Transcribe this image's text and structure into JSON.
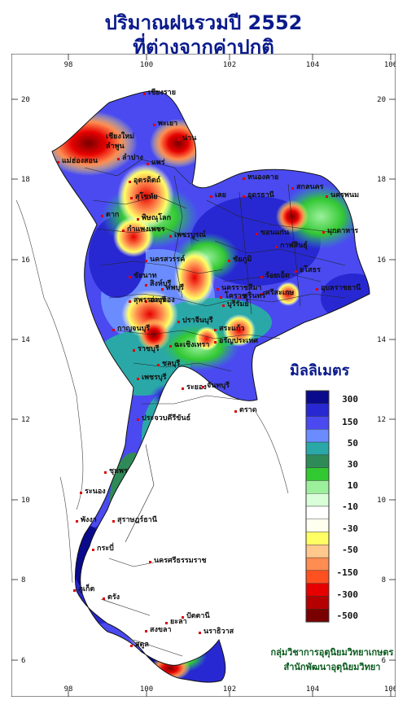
{
  "title": {
    "line1": "ปริมาณฝนรวมปี  2552",
    "line2": "ที่ต่างจากค่าปกติ"
  },
  "axes": {
    "lon_ticks": [
      "98",
      "100",
      "102",
      "104",
      "106"
    ],
    "lat_ticks": [
      "20",
      "18",
      "16",
      "14",
      "12",
      "10",
      "8",
      "6"
    ]
  },
  "legend": {
    "unit_label": "มิลลิเมตร",
    "class_labels": [
      "300",
      "150",
      "50",
      "30",
      "10",
      "-10",
      "-30",
      "-50",
      "-150",
      "-300",
      "-500"
    ],
    "colors": [
      "#0a0a8c",
      "#2828d2",
      "#4a4af0",
      "#6a8cff",
      "#2aa8a8",
      "#2e8b57",
      "#32c832",
      "#9cf09c",
      "#d8ffd8",
      "#ffffff",
      "#fffff0",
      "#ffff64",
      "#ffc88c",
      "#ff8c50",
      "#ff5020",
      "#e60000",
      "#b40000",
      "#780000"
    ]
  },
  "credits": {
    "line1": "กลุ่มวิชาการอุตุนิยมวิทยาเกษตร",
    "line2": "สำนักพัฒนาอุตุนิยมวิทยา"
  },
  "places": [
    "เชียงราย",
    "เชียงใหม่",
    "ลำพูน",
    "ลำปาง",
    "พะเยา",
    "น่าน",
    "แพร่",
    "แม่ฮ่องสอน",
    "อุตรดิตถ์",
    "ตาก",
    "พิษณุโลก",
    "สุโขทัย",
    "กำแพงเพชร",
    "เพชรบูรณ์",
    "นครสวรรค์",
    "ลพบุรี",
    "ชัยนาท",
    "สิงห์บุรี",
    "อ่างทอง",
    "สุพรรณบุรี",
    "กาญจนบุรี",
    "ราชบุรี",
    "เพชรบุรี",
    "ประจวบคีรีขันธ์",
    "ชุมพร",
    "ระนอง",
    "สุราษฎร์ธานี",
    "นครศรีธรรมราช",
    "กระบี่",
    "พังงา",
    "ภูเก็ต",
    "ตรัง",
    "สงขลา",
    "สตูล",
    "ปัตตานี",
    "ยะลา",
    "นราธิวาส",
    "หนองคาย",
    "อุดรธานี",
    "เลย",
    "สกลนคร",
    "นครพนม",
    "มุกดาหาร",
    "ขอนแก่น",
    "ชัยภูมิ",
    "กาฬสินธุ์",
    "ร้อยเอ็ด",
    "ยโสธร",
    "อุบลราชธานี",
    "ศรีสะเกษ",
    "สุรินทร์",
    "บุรีรัมย์",
    "นครราชสีมา",
    "ปราจีนบุรี",
    "สระแก้ว",
    "ฉะเชิงเทรา",
    "ชลบุรี",
    "ระยอง",
    "จันทบุรี",
    "ตราด",
    "อรัญประเทศ",
    "โคราช"
  ],
  "field": {
    "description_values_mm": {
      "north_far_west_anomaly": -300,
      "nan_anomaly": -150,
      "northeast_general": 150,
      "south_west_coast": 300,
      "nakhon_si_thammarat": -300,
      "central_scattered": -50
    }
  }
}
